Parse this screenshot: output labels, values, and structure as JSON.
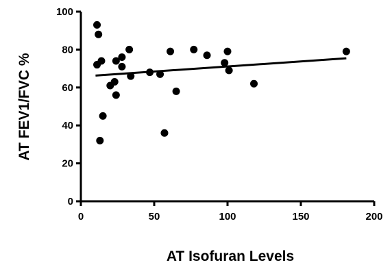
{
  "chart_data": {
    "type": "scatter",
    "title": "",
    "xlabel": "AT Isofuran Levels",
    "ylabel": "AT FEV1/FVC %",
    "xlim": [
      0,
      200
    ],
    "ylim": [
      0,
      100
    ],
    "x_ticks": [
      "0",
      "50",
      "100",
      "150",
      "200"
    ],
    "y_ticks": [
      "0",
      "20",
      "40",
      "60",
      "80",
      "100"
    ],
    "grid": false,
    "points": [
      {
        "x": 11,
        "y": 93
      },
      {
        "x": 12,
        "y": 88
      },
      {
        "x": 11,
        "y": 72
      },
      {
        "x": 14,
        "y": 74
      },
      {
        "x": 15,
        "y": 45
      },
      {
        "x": 13,
        "y": 32
      },
      {
        "x": 20,
        "y": 61
      },
      {
        "x": 23,
        "y": 63
      },
      {
        "x": 24,
        "y": 74
      },
      {
        "x": 24,
        "y": 56
      },
      {
        "x": 28,
        "y": 76
      },
      {
        "x": 28,
        "y": 71
      },
      {
        "x": 33,
        "y": 80
      },
      {
        "x": 34,
        "y": 66
      },
      {
        "x": 47,
        "y": 68
      },
      {
        "x": 54,
        "y": 67
      },
      {
        "x": 57,
        "y": 36
      },
      {
        "x": 61,
        "y": 79
      },
      {
        "x": 65,
        "y": 58
      },
      {
        "x": 77,
        "y": 80
      },
      {
        "x": 86,
        "y": 77
      },
      {
        "x": 98,
        "y": 73
      },
      {
        "x": 100,
        "y": 79
      },
      {
        "x": 101,
        "y": 69
      },
      {
        "x": 118,
        "y": 62
      },
      {
        "x": 181,
        "y": 79
      }
    ],
    "regression_line": {
      "x": [
        10,
        181
      ],
      "y": [
        66.3,
        75.4
      ]
    },
    "colors": {
      "points": "#000000",
      "line": "#000000",
      "axis": "#000000"
    }
  }
}
